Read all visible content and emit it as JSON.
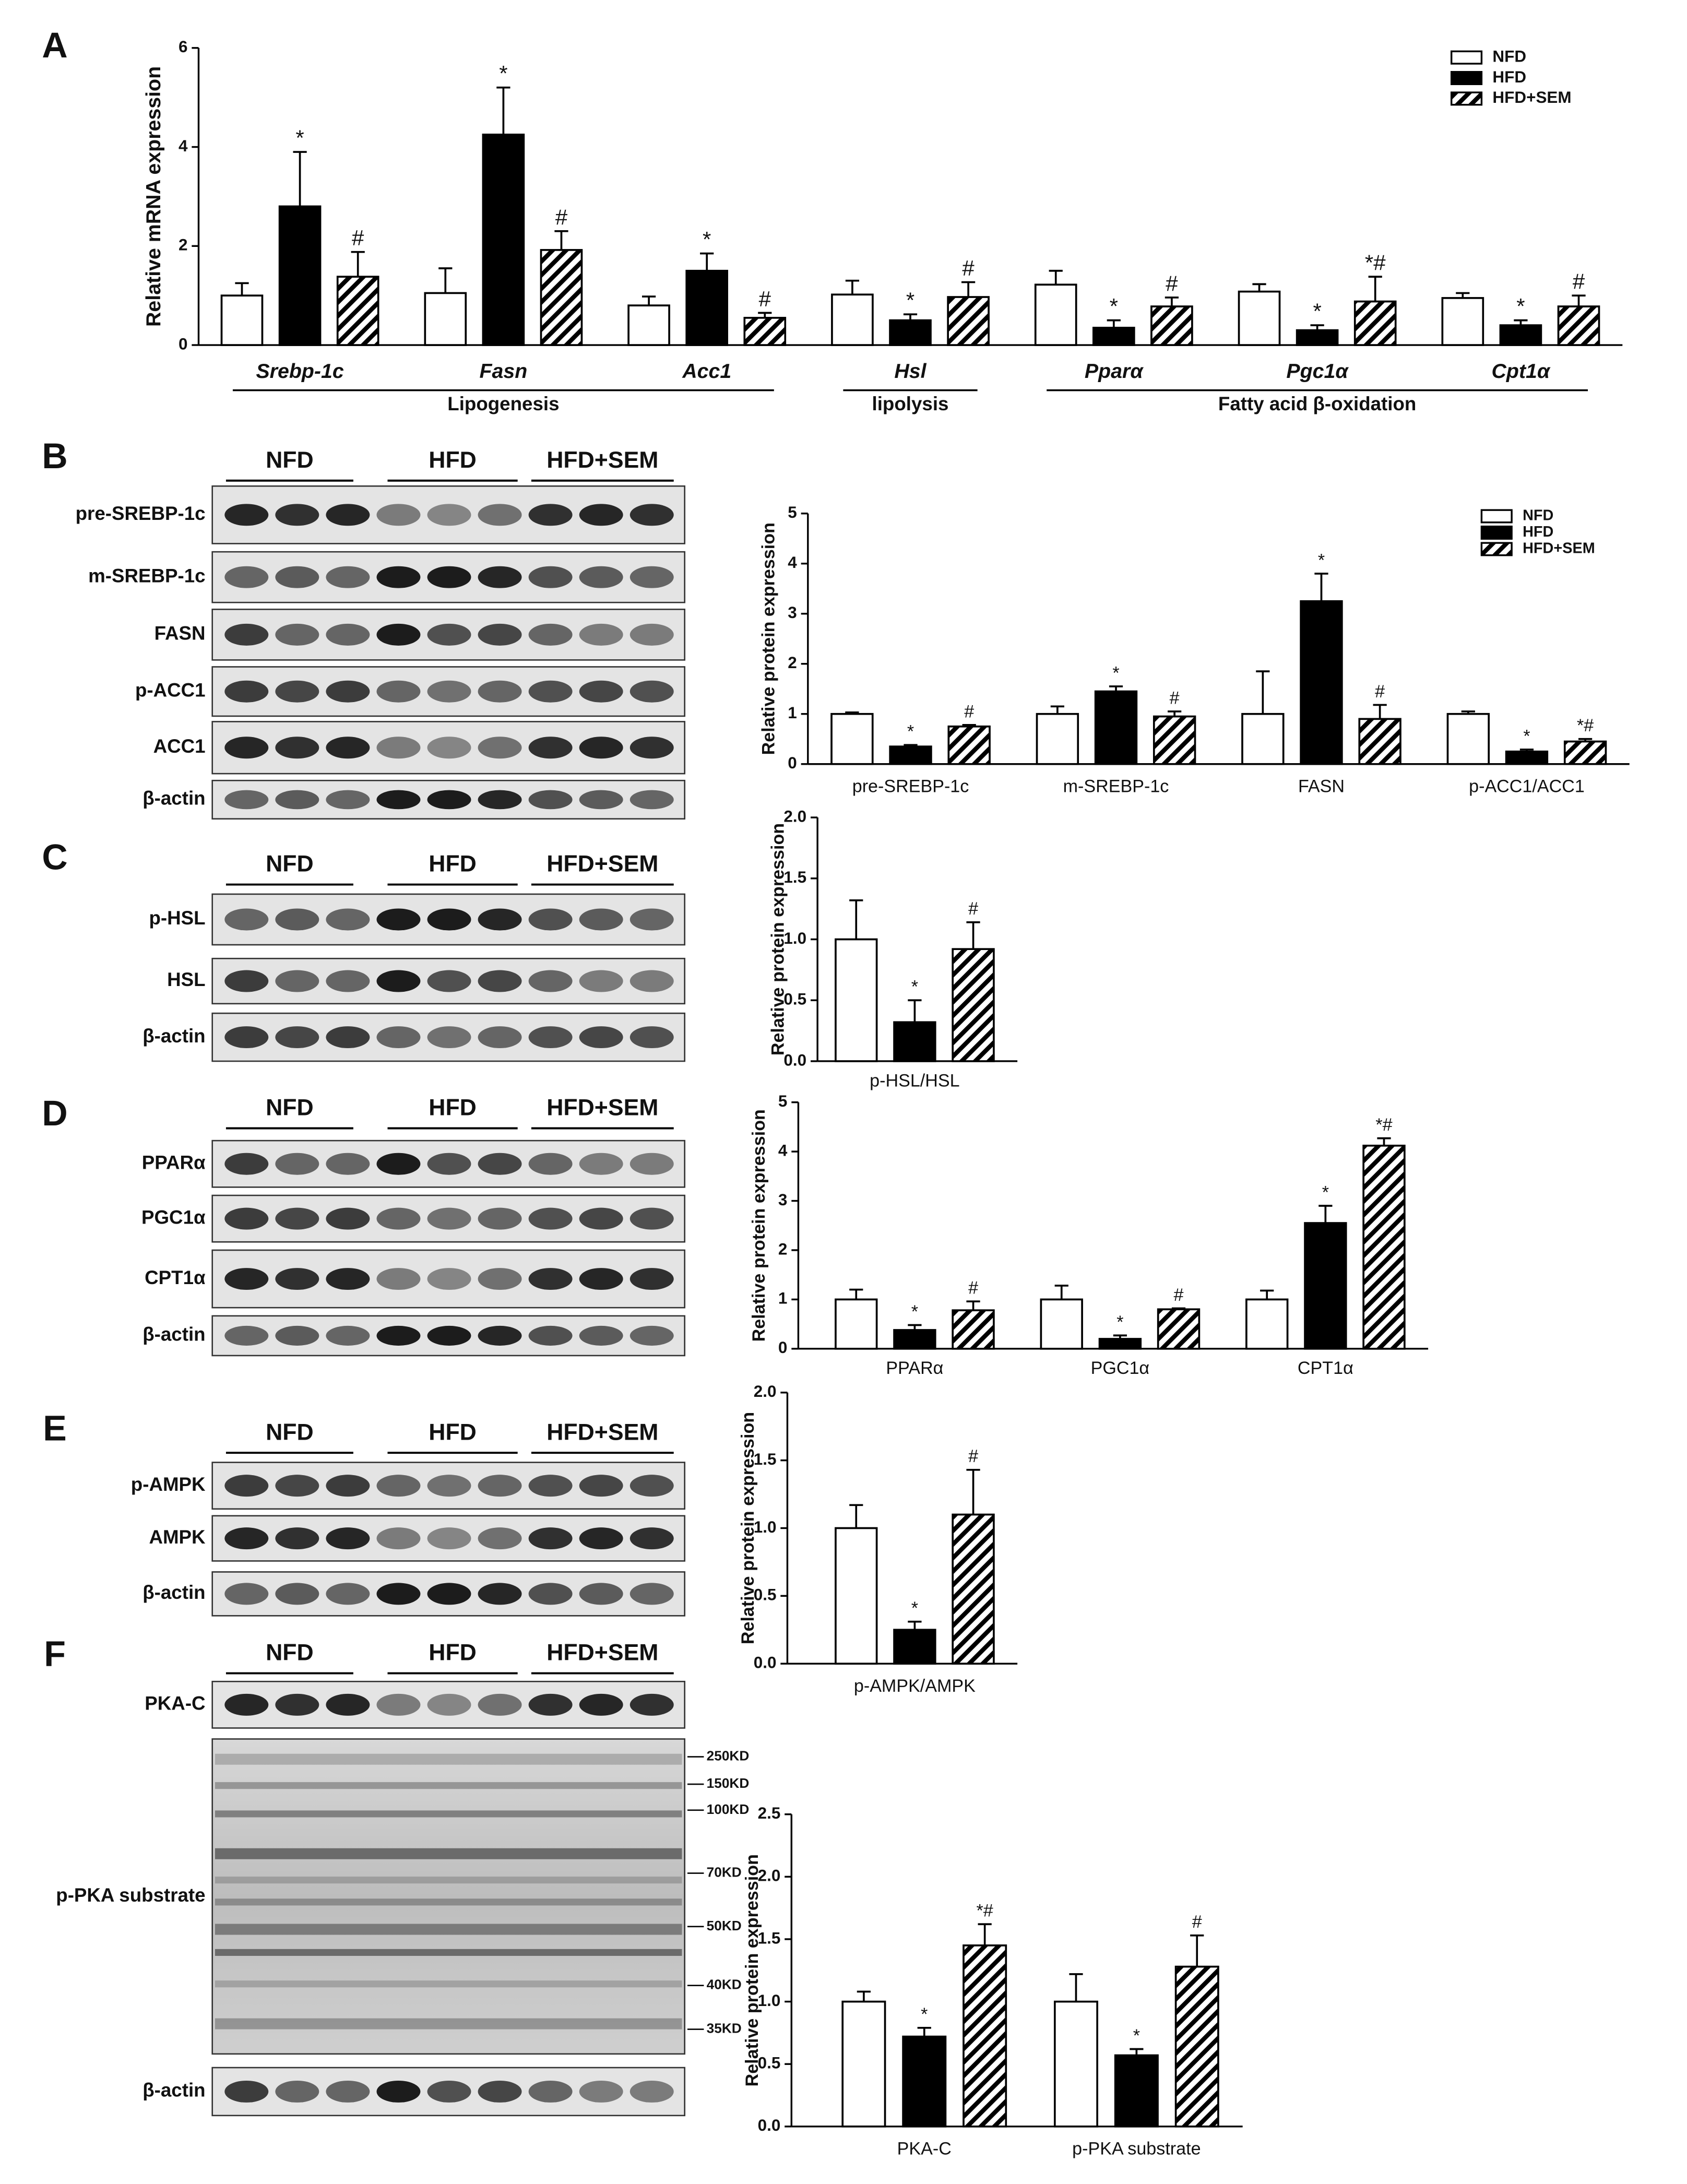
{
  "panels": [
    "A",
    "B",
    "C",
    "D",
    "E",
    "F"
  ],
  "blots": [
    {
      "groups": [
        "NFD",
        "HFD",
        "HFD+SEM"
      ],
      "rows": [
        "pre-SREBP-1c",
        "m-SREBP-1c",
        "FASN",
        "p-ACC1",
        "ACC1",
        "β-actin"
      ]
    },
    {
      "groups": [
        "NFD",
        "HFD",
        "HFD+SEM"
      ],
      "rows": [
        "p-HSL",
        "HSL",
        "β-actin"
      ]
    },
    {
      "groups": [
        "NFD",
        "HFD",
        "HFD+SEM"
      ],
      "rows": [
        "PPARα",
        "PGC1α",
        "CPT1α",
        "β-actin"
      ]
    },
    {
      "groups": [
        "NFD",
        "HFD",
        "HFD+SEM"
      ],
      "rows": [
        "p-AMPK",
        "AMPK",
        "β-actin"
      ]
    },
    {
      "groups": [
        "NFD",
        "HFD",
        "HFD+SEM"
      ],
      "rows": [
        "PKA-C",
        "p-PKA substrate",
        "β-actin"
      ]
    }
  ],
  "size_markers": [
    "250KD",
    "150KD",
    "100KD",
    "70KD",
    "50KD",
    "40KD",
    "35KD"
  ],
  "chart_data": [
    {
      "type": "bar",
      "ylabel": "Relative mRNA expression",
      "category_style": "italic",
      "legend": true,
      "categories": [
        "Srebp-1c",
        "Fasn",
        "Acc1",
        "Hsl",
        "Pparα",
        "Pgc1α",
        "Cpt1α"
      ],
      "groups": [
        {
          "label": "Lipogenesis",
          "categories": [
            "Srebp-1c",
            "Fasn",
            "Acc1"
          ]
        },
        {
          "label": "lipolysis",
          "categories": [
            "Hsl"
          ]
        },
        {
          "label": "Fatty acid β-oxidation",
          "categories": [
            "Pparα",
            "Pgc1α",
            "Cpt1α"
          ]
        }
      ],
      "ylim": [
        0,
        6
      ],
      "yticks": [
        0,
        2,
        4,
        6
      ],
      "series": [
        {
          "name": "NFD",
          "color": "#ffffff",
          "hatch": false,
          "values": [
            1.0,
            1.05,
            0.8,
            1.02,
            1.22,
            1.08,
            0.95
          ],
          "errors": [
            0.25,
            0.5,
            0.18,
            0.28,
            0.28,
            0.15,
            0.1
          ],
          "marks": [
            null,
            null,
            null,
            null,
            null,
            null,
            null
          ]
        },
        {
          "name": "HFD",
          "color": "#000000",
          "hatch": false,
          "values": [
            2.8,
            4.25,
            1.5,
            0.5,
            0.35,
            0.3,
            0.4
          ],
          "errors": [
            1.1,
            0.95,
            0.35,
            0.12,
            0.15,
            0.1,
            0.1
          ],
          "marks": [
            "*",
            "*",
            "*",
            "*",
            "*",
            "*",
            "*"
          ]
        },
        {
          "name": "HFD+SEM",
          "color": "#000000",
          "hatch": true,
          "values": [
            1.38,
            1.92,
            0.55,
            0.97,
            0.78,
            0.88,
            0.78
          ],
          "errors": [
            0.5,
            0.38,
            0.1,
            0.3,
            0.18,
            0.5,
            0.22
          ],
          "marks": [
            "#",
            "#",
            "#",
            "#",
            "#",
            "*#",
            "#"
          ]
        }
      ]
    },
    {
      "type": "bar",
      "ylabel": "Relative protein expression",
      "category_style": "normal",
      "legend": true,
      "categories": [
        "pre-SREBP-1c",
        "m-SREBP-1c",
        "FASN",
        "p-ACC1/ACC1"
      ],
      "ylim": [
        0,
        5
      ],
      "yticks": [
        0,
        1,
        2,
        3,
        4,
        5
      ],
      "series": [
        {
          "name": "NFD",
          "color": "#ffffff",
          "hatch": false,
          "values": [
            1.0,
            1.0,
            1.0,
            1.0
          ],
          "errors": [
            0.03,
            0.15,
            0.85,
            0.05
          ],
          "marks": [
            null,
            null,
            null,
            null
          ]
        },
        {
          "name": "HFD",
          "color": "#000000",
          "hatch": false,
          "values": [
            0.35,
            1.45,
            3.25,
            0.25
          ],
          "errors": [
            0.03,
            0.1,
            0.55,
            0.04
          ],
          "marks": [
            "*",
            "*",
            "*",
            "*"
          ]
        },
        {
          "name": "HFD+SEM",
          "color": "#000000",
          "hatch": true,
          "values": [
            0.75,
            0.95,
            0.9,
            0.45
          ],
          "errors": [
            0.03,
            0.1,
            0.28,
            0.05
          ],
          "marks": [
            "#",
            "#",
            "#",
            "*#"
          ]
        }
      ]
    },
    {
      "type": "bar",
      "ylabel": "Relative protein expression",
      "category_style": "normal",
      "legend": false,
      "categories": [
        "p-HSL/HSL"
      ],
      "ylim": [
        0,
        2
      ],
      "yticks": [
        {
          "value": 0,
          "label": "0.0"
        },
        0.5,
        {
          "value": 1,
          "label": "1.0"
        },
        1.5,
        {
          "value": 2,
          "label": "2.0"
        }
      ],
      "series": [
        {
          "name": "NFD",
          "color": "#ffffff",
          "hatch": false,
          "values": [
            1.0
          ],
          "errors": [
            0.32
          ],
          "marks": [
            null
          ]
        },
        {
          "name": "HFD",
          "color": "#000000",
          "hatch": false,
          "values": [
            0.32
          ],
          "errors": [
            0.18
          ],
          "marks": [
            "*"
          ]
        },
        {
          "name": "HFD+SEM",
          "color": "#000000",
          "hatch": true,
          "values": [
            0.92
          ],
          "errors": [
            0.22
          ],
          "marks": [
            "#"
          ]
        }
      ]
    },
    {
      "type": "bar",
      "ylabel": "Relative protein expression",
      "category_style": "normal",
      "legend": false,
      "categories": [
        "PPARα",
        "PGC1α",
        "CPT1α"
      ],
      "ylim": [
        0,
        5
      ],
      "yticks": [
        0,
        1,
        2,
        3,
        4,
        5
      ],
      "series": [
        {
          "name": "NFD",
          "color": "#ffffff",
          "hatch": false,
          "values": [
            1.0,
            1.0,
            1.0
          ],
          "errors": [
            0.2,
            0.28,
            0.18
          ],
          "marks": [
            null,
            null,
            null
          ]
        },
        {
          "name": "HFD",
          "color": "#000000",
          "hatch": false,
          "values": [
            0.38,
            0.2,
            2.55
          ],
          "errors": [
            0.1,
            0.07,
            0.35
          ],
          "marks": [
            "*",
            "*",
            "*"
          ]
        },
        {
          "name": "HFD+SEM",
          "color": "#000000",
          "hatch": true,
          "values": [
            0.78,
            0.8,
            4.12
          ],
          "errors": [
            0.18,
            0.02,
            0.15
          ],
          "marks": [
            "#",
            "#",
            "*#"
          ]
        }
      ]
    },
    {
      "type": "bar",
      "ylabel": "Relative protein expression",
      "category_style": "normal",
      "legend": false,
      "categories": [
        "p-AMPK/AMPK"
      ],
      "ylim": [
        0,
        2
      ],
      "yticks": [
        {
          "value": 0,
          "label": "0.0"
        },
        0.5,
        {
          "value": 1,
          "label": "1.0"
        },
        1.5,
        {
          "value": 2,
          "label": "2.0"
        }
      ],
      "series": [
        {
          "name": "NFD",
          "color": "#ffffff",
          "hatch": false,
          "values": [
            1.0
          ],
          "errors": [
            0.17
          ],
          "marks": [
            null
          ]
        },
        {
          "name": "HFD",
          "color": "#000000",
          "hatch": false,
          "values": [
            0.25
          ],
          "errors": [
            0.06
          ],
          "marks": [
            "*"
          ]
        },
        {
          "name": "HFD+SEM",
          "color": "#000000",
          "hatch": true,
          "values": [
            1.1
          ],
          "errors": [
            0.33
          ],
          "marks": [
            "#"
          ]
        }
      ]
    },
    {
      "type": "bar",
      "ylabel": "Relative protein expression",
      "category_style": "normal",
      "legend": false,
      "categories": [
        "PKA-C",
        "p-PKA substrate"
      ],
      "ylim": [
        0,
        2.5
      ],
      "yticks": [
        {
          "value": 0,
          "label": "0.0"
        },
        0.5,
        {
          "value": 1,
          "label": "1.0"
        },
        1.5,
        {
          "value": 2,
          "label": "2.0"
        },
        2.5
      ],
      "series": [
        {
          "name": "NFD",
          "color": "#ffffff",
          "hatch": false,
          "values": [
            1.0,
            1.0
          ],
          "errors": [
            0.08,
            0.22
          ],
          "marks": [
            null,
            null
          ]
        },
        {
          "name": "HFD",
          "color": "#000000",
          "hatch": false,
          "values": [
            0.72,
            0.57
          ],
          "errors": [
            0.07,
            0.05
          ],
          "marks": [
            "*",
            "*"
          ]
        },
        {
          "name": "HFD+SEM",
          "color": "#000000",
          "hatch": true,
          "values": [
            1.45,
            1.28
          ],
          "errors": [
            0.17,
            0.25
          ],
          "marks": [
            "*#",
            "#"
          ]
        }
      ]
    }
  ]
}
